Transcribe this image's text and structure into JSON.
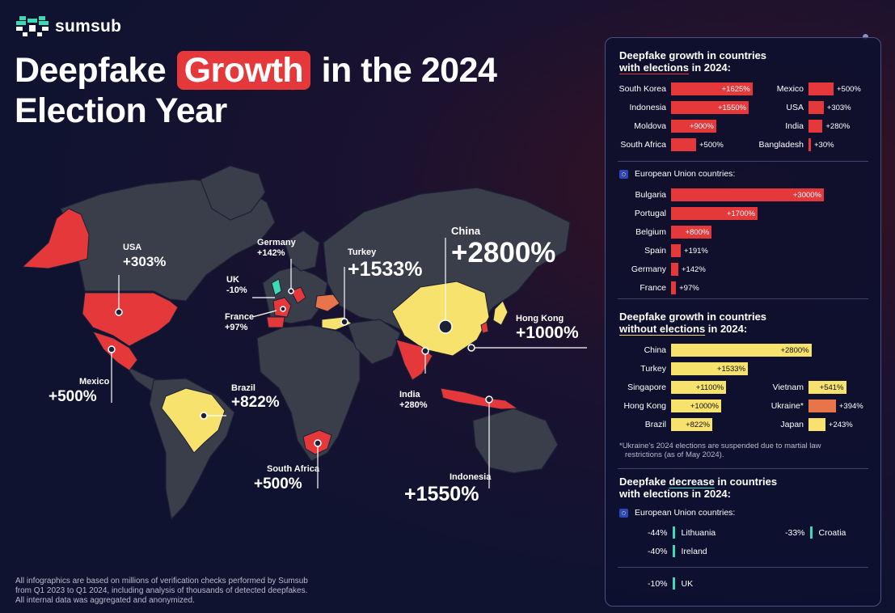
{
  "brand": {
    "logo": "sumsub"
  },
  "title": {
    "pre": "Deepfake",
    "highlight": "Growth",
    "post": "in the 2024",
    "line2": "Election Year"
  },
  "map_labels": {
    "usa": {
      "name": "USA",
      "value": "+303%"
    },
    "mexico": {
      "name": "Mexico",
      "value": "+500%"
    },
    "brazil": {
      "name": "Brazil",
      "value": "+822%"
    },
    "south_africa": {
      "name": "South Africa",
      "value": "+500%"
    },
    "uk": {
      "name": "UK",
      "value": "-10%"
    },
    "france": {
      "name": "France",
      "value": "+97%"
    },
    "germany": {
      "name": "Germany",
      "value": "+142%"
    },
    "turkey": {
      "name": "Turkey",
      "value": "+1533%"
    },
    "china": {
      "name": "China",
      "value": "+2800%"
    },
    "hong_kong": {
      "name": "Hong Kong",
      "value": "+1000%"
    },
    "india": {
      "name": "India",
      "value": "+280%"
    },
    "indonesia": {
      "name": "Indonesia",
      "value": "+1550%"
    }
  },
  "footnote": [
    "All infographics are based on millions of verification checks performed by Sumsub",
    "from Q1 2023 to Q1 2024, including analysis of thousands of detected deepfakes.",
    "All internal data was aggregated and anonymized."
  ],
  "colors": {
    "elections_growth": "#e5383b",
    "no_elections_growth": "#f6e26d",
    "ukraine": "#e8744a",
    "decrease": "#3ddbb5",
    "land": "#3a3d4a",
    "background": "#0f1330"
  },
  "chart_data": [
    {
      "type": "bar",
      "title": "Deepfake growth in countries with elections in 2024:",
      "series": [
        {
          "categories": [
            "South Korea",
            "Indonesia",
            "Moldova",
            "South Africa",
            "Mexico",
            "USA",
            "India",
            "Bangladesh"
          ],
          "values": [
            1625,
            1550,
            900,
            500,
            500,
            303,
            280,
            30
          ],
          "labels": [
            "+1625%",
            "+1550%",
            "+900%",
            "+500%",
            "+500%",
            "+303%",
            "+280%",
            "+30%"
          ]
        }
      ]
    },
    {
      "type": "bar",
      "title": "European Union countries:",
      "categories": [
        "Bulgaria",
        "Portugal",
        "Belgium",
        "Spain",
        "Germany",
        "France"
      ],
      "values": [
        3000,
        1700,
        800,
        191,
        142,
        97
      ],
      "labels": [
        "+3000%",
        "+1700%",
        "+800%",
        "+191%",
        "+142%",
        "+97%"
      ]
    },
    {
      "type": "bar",
      "title": "Deepfake growth in countries without elections in 2024:",
      "series": [
        {
          "categories": [
            "China",
            "Turkey",
            "Singapore",
            "Hong Kong",
            "Brazil",
            "Vietnam",
            "Ukraine*",
            "Japan"
          ],
          "values": [
            2800,
            1533,
            1100,
            1000,
            822,
            541,
            394,
            243
          ],
          "labels": [
            "+2800%",
            "+1533%",
            "+1100%",
            "+1000%",
            "+822%",
            "+541%",
            "+394%",
            "+243%"
          ]
        }
      ],
      "note": [
        "*Ukraine's 2024 elections are suspended due to martial law",
        "restrictions (as of May 2024)."
      ]
    },
    {
      "type": "bar",
      "title": "Deepfake decrease in countries with elections in 2024:",
      "subtitle": "European Union countries:",
      "categories": [
        "Lithuania",
        "Ireland",
        "Croatia",
        "UK"
      ],
      "values": [
        -44,
        -40,
        -33,
        -10
      ],
      "labels": [
        "-44%",
        "-40%",
        "-33%",
        "-10%"
      ]
    }
  ],
  "panel": {
    "sec1": {
      "pre": "Deepfake growth in countries",
      "u": "with elections",
      "post": " in 2024:"
    },
    "eu_label": "European Union countries:",
    "sec3": {
      "pre": "Deepfake growth in countries",
      "u": "without elections",
      "post": " in 2024:"
    },
    "sec4": {
      "pre": "Deepfake ",
      "u": "decrease",
      "post": " in countries",
      "line2": "with elections in 2024:"
    }
  }
}
